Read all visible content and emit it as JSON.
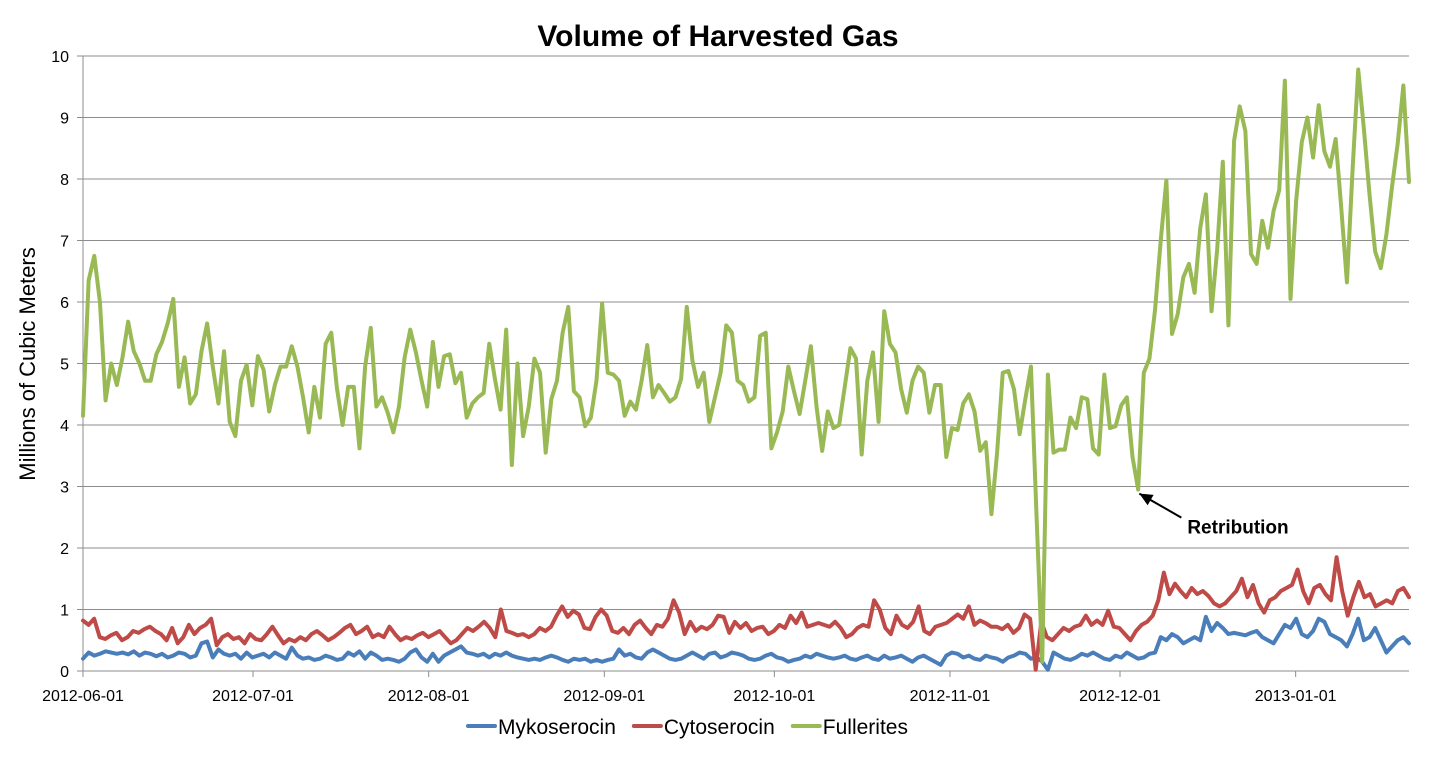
{
  "chart_data": {
    "type": "line",
    "title": "Volume of Harvested Gas",
    "xlabel": "",
    "ylabel": "Millions of Cubic Meters",
    "x_start": "2012-06-01",
    "x_end": "2013-01-21",
    "ylim": [
      0,
      10
    ],
    "yticks": [
      0,
      1,
      2,
      3,
      4,
      5,
      6,
      7,
      8,
      9,
      10
    ],
    "xtick_labels": [
      "2012-06-01",
      "2012-07-01",
      "2012-08-01",
      "2012-09-01",
      "2012-10-01",
      "2012-11-01",
      "2012-12-01",
      "2013-01-01"
    ],
    "grid": true,
    "legend_position": "bottom",
    "colors": {
      "Mykoserocin": "#4a7ebb",
      "Cytoserocin": "#be4b48",
      "Fullerites": "#98b954"
    },
    "series": [
      {
        "name": "Mykoserocin",
        "values": [
          0.2,
          0.3,
          0.25,
          0.28,
          0.32,
          0.3,
          0.28,
          0.3,
          0.27,
          0.32,
          0.25,
          0.3,
          0.28,
          0.24,
          0.28,
          0.22,
          0.25,
          0.3,
          0.28,
          0.22,
          0.25,
          0.45,
          0.48,
          0.22,
          0.35,
          0.28,
          0.25,
          0.28,
          0.2,
          0.3,
          0.22,
          0.25,
          0.28,
          0.22,
          0.3,
          0.25,
          0.2,
          0.38,
          0.25,
          0.2,
          0.22,
          0.18,
          0.2,
          0.25,
          0.22,
          0.18,
          0.2,
          0.3,
          0.25,
          0.32,
          0.2,
          0.3,
          0.25,
          0.18,
          0.2,
          0.18,
          0.15,
          0.2,
          0.3,
          0.35,
          0.22,
          0.15,
          0.28,
          0.15,
          0.25,
          0.3,
          0.35,
          0.4,
          0.3,
          0.28,
          0.25,
          0.28,
          0.22,
          0.28,
          0.25,
          0.3,
          0.25,
          0.22,
          0.2,
          0.18,
          0.2,
          0.18,
          0.22,
          0.25,
          0.22,
          0.18,
          0.15,
          0.2,
          0.18,
          0.2,
          0.15,
          0.18,
          0.15,
          0.18,
          0.2,
          0.35,
          0.25,
          0.28,
          0.22,
          0.2,
          0.3,
          0.35,
          0.3,
          0.25,
          0.2,
          0.18,
          0.2,
          0.25,
          0.3,
          0.25,
          0.2,
          0.28,
          0.3,
          0.22,
          0.25,
          0.3,
          0.28,
          0.25,
          0.2,
          0.18,
          0.2,
          0.25,
          0.28,
          0.22,
          0.2,
          0.15,
          0.18,
          0.2,
          0.25,
          0.22,
          0.28,
          0.25,
          0.22,
          0.2,
          0.22,
          0.25,
          0.2,
          0.18,
          0.22,
          0.25,
          0.2,
          0.18,
          0.25,
          0.2,
          0.22,
          0.25,
          0.2,
          0.15,
          0.22,
          0.25,
          0.2,
          0.15,
          0.1,
          0.25,
          0.3,
          0.28,
          0.22,
          0.25,
          0.2,
          0.18,
          0.25,
          0.22,
          0.2,
          0.15,
          0.22,
          0.25,
          0.3,
          0.28,
          0.2,
          0.22,
          0.15,
          0.02,
          0.3,
          0.25,
          0.2,
          0.18,
          0.22,
          0.28,
          0.25,
          0.3,
          0.25,
          0.2,
          0.18,
          0.25,
          0.22,
          0.3,
          0.25,
          0.2,
          0.22,
          0.28,
          0.3,
          0.55,
          0.5,
          0.6,
          0.55,
          0.45,
          0.5,
          0.55,
          0.5,
          0.88,
          0.65,
          0.78,
          0.7,
          0.6,
          0.62,
          0.6,
          0.58,
          0.62,
          0.65,
          0.55,
          0.5,
          0.45,
          0.6,
          0.75,
          0.7,
          0.85,
          0.6,
          0.55,
          0.65,
          0.85,
          0.8,
          0.6,
          0.55,
          0.5,
          0.4,
          0.6,
          0.85,
          0.5,
          0.55,
          0.7,
          0.5,
          0.3,
          0.4,
          0.5,
          0.55,
          0.45
        ]
      },
      {
        "name": "Cytoserocin",
        "values": [
          0.82,
          0.75,
          0.85,
          0.55,
          0.52,
          0.58,
          0.62,
          0.5,
          0.55,
          0.65,
          0.62,
          0.68,
          0.72,
          0.65,
          0.6,
          0.5,
          0.7,
          0.45,
          0.55,
          0.75,
          0.6,
          0.7,
          0.75,
          0.85,
          0.42,
          0.55,
          0.6,
          0.52,
          0.55,
          0.45,
          0.6,
          0.52,
          0.5,
          0.6,
          0.72,
          0.58,
          0.45,
          0.52,
          0.48,
          0.55,
          0.5,
          0.6,
          0.65,
          0.58,
          0.5,
          0.55,
          0.62,
          0.7,
          0.75,
          0.6,
          0.65,
          0.72,
          0.55,
          0.6,
          0.55,
          0.72,
          0.6,
          0.5,
          0.55,
          0.52,
          0.58,
          0.62,
          0.55,
          0.6,
          0.65,
          0.55,
          0.45,
          0.5,
          0.6,
          0.7,
          0.65,
          0.72,
          0.8,
          0.7,
          0.55,
          1.0,
          0.65,
          0.62,
          0.58,
          0.6,
          0.55,
          0.6,
          0.7,
          0.65,
          0.72,
          0.9,
          1.05,
          0.88,
          0.98,
          0.92,
          0.7,
          0.68,
          0.88,
          1.0,
          0.9,
          0.65,
          0.62,
          0.7,
          0.6,
          0.75,
          0.82,
          0.7,
          0.6,
          0.75,
          0.72,
          0.85,
          1.15,
          0.95,
          0.6,
          0.8,
          0.65,
          0.72,
          0.68,
          0.75,
          0.9,
          0.88,
          0.62,
          0.8,
          0.7,
          0.78,
          0.65,
          0.7,
          0.72,
          0.6,
          0.65,
          0.75,
          0.7,
          0.9,
          0.78,
          0.95,
          0.72,
          0.75,
          0.78,
          0.75,
          0.72,
          0.8,
          0.7,
          0.55,
          0.6,
          0.7,
          0.75,
          0.72,
          1.15,
          1.0,
          0.7,
          0.6,
          0.9,
          0.75,
          0.7,
          0.8,
          1.05,
          0.65,
          0.6,
          0.72,
          0.75,
          0.78,
          0.85,
          0.92,
          0.85,
          1.05,
          0.75,
          0.82,
          0.78,
          0.72,
          0.72,
          0.68,
          0.75,
          0.62,
          0.7,
          0.92,
          0.85,
          0.02,
          0.8,
          0.55,
          0.5,
          0.6,
          0.7,
          0.65,
          0.72,
          0.75,
          0.9,
          0.75,
          0.82,
          0.75,
          0.98,
          0.72,
          0.7,
          0.6,
          0.5,
          0.65,
          0.75,
          0.8,
          0.9,
          1.15,
          1.6,
          1.25,
          1.42,
          1.3,
          1.2,
          1.35,
          1.25,
          1.3,
          1.22,
          1.1,
          1.05,
          1.1,
          1.2,
          1.3,
          1.5,
          1.2,
          1.4,
          1.1,
          0.95,
          1.15,
          1.2,
          1.3,
          1.35,
          1.4,
          1.65,
          1.3,
          1.1,
          1.35,
          1.4,
          1.25,
          1.15,
          1.85,
          1.3,
          0.9,
          1.2,
          1.45,
          1.2,
          1.25,
          1.05,
          1.1,
          1.15,
          1.1,
          1.3,
          1.35,
          1.2
        ]
      },
      {
        "name": "Fullerites",
        "values": [
          4.15,
          6.35,
          6.75,
          6.0,
          4.4,
          5.0,
          4.65,
          5.1,
          5.68,
          5.2,
          5.0,
          4.72,
          4.72,
          5.15,
          5.35,
          5.65,
          6.05,
          4.62,
          5.1,
          4.35,
          4.5,
          5.2,
          5.65,
          4.95,
          4.35,
          5.2,
          4.05,
          3.82,
          4.72,
          4.98,
          4.32,
          5.12,
          4.9,
          4.22,
          4.65,
          4.95,
          4.95,
          5.28,
          4.95,
          4.45,
          3.88,
          4.62,
          4.12,
          5.32,
          5.5,
          4.6,
          4.0,
          4.62,
          4.62,
          3.62,
          4.95,
          5.58,
          4.3,
          4.45,
          4.2,
          3.88,
          4.3,
          5.1,
          5.55,
          5.18,
          4.72,
          4.3,
          5.35,
          4.62,
          5.12,
          5.15,
          4.68,
          4.85,
          4.12,
          4.35,
          4.45,
          4.52,
          5.32,
          4.75,
          4.25,
          5.55,
          3.35,
          5.0,
          3.82,
          4.3,
          5.08,
          4.85,
          3.55,
          4.42,
          4.72,
          5.5,
          5.92,
          4.55,
          4.45,
          3.98,
          4.12,
          4.72,
          5.98,
          4.85,
          4.82,
          4.72,
          4.15,
          4.38,
          4.25,
          4.72,
          5.3,
          4.45,
          4.65,
          4.52,
          4.38,
          4.45,
          4.75,
          5.92,
          5.05,
          4.62,
          4.85,
          4.05,
          4.45,
          4.85,
          5.62,
          5.5,
          4.72,
          4.65,
          4.38,
          4.45,
          5.45,
          5.5,
          3.62,
          3.88,
          4.22,
          4.95,
          4.55,
          4.18,
          4.72,
          5.28,
          4.3,
          3.58,
          4.22,
          3.95,
          4.0,
          4.62,
          5.25,
          5.08,
          3.52,
          4.72,
          5.18,
          4.05,
          5.85,
          5.32,
          5.18,
          4.58,
          4.2,
          4.72,
          4.95,
          4.85,
          4.2,
          4.65,
          4.65,
          3.48,
          3.95,
          3.92,
          4.35,
          4.5,
          4.22,
          3.58,
          3.72,
          2.55,
          3.55,
          4.85,
          4.88,
          4.58,
          3.85,
          4.42,
          4.95,
          2.5,
          0.15,
          4.82,
          3.55,
          3.6,
          3.6,
          4.12,
          3.95,
          4.45,
          4.42,
          3.62,
          3.52,
          4.82,
          3.95,
          3.98,
          4.32,
          4.45,
          3.48,
          2.95,
          4.85,
          5.08,
          5.88,
          7.0,
          7.98,
          5.48,
          5.8,
          6.4,
          6.62,
          6.15,
          7.2,
          7.75,
          5.85,
          6.85,
          8.28,
          5.62,
          8.62,
          9.18,
          8.78,
          6.78,
          6.62,
          7.32,
          6.88,
          7.48,
          7.82,
          9.6,
          6.05,
          7.65,
          8.6,
          9.0,
          8.35,
          9.2,
          8.45,
          8.2,
          8.65,
          7.52,
          6.32,
          8.15,
          9.78,
          8.82,
          7.75,
          6.82,
          6.55,
          7.1,
          7.88,
          8.58,
          9.52,
          7.95
        ]
      }
    ],
    "annotations": [
      {
        "text": "Retribution",
        "target_date": "2012-12-03",
        "target_value": 2.95
      }
    ]
  }
}
